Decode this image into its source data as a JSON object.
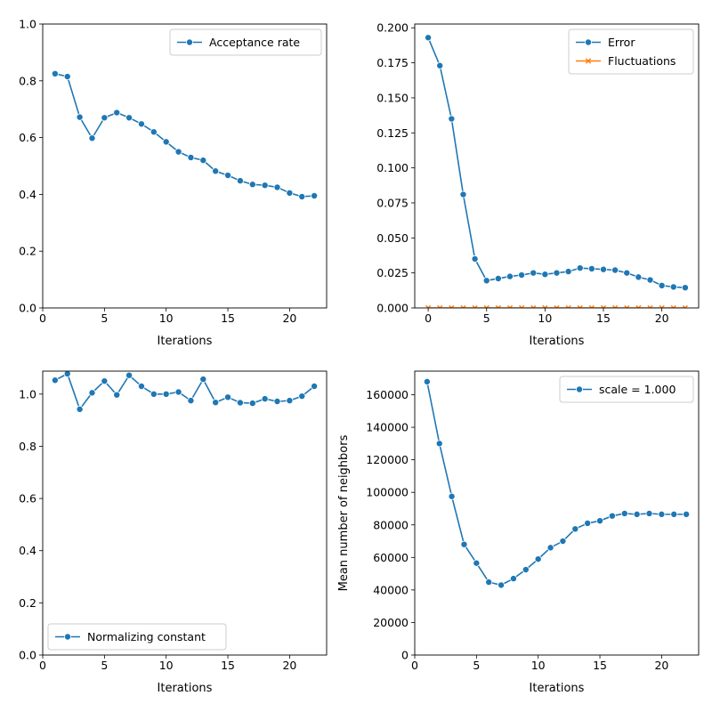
{
  "chart_data": [
    {
      "type": "line",
      "xlabel": "Iterations",
      "ylabel": "",
      "xlim": [
        0,
        23
      ],
      "ylim": [
        0,
        1.0
      ],
      "xticks": [
        0,
        5,
        10,
        15,
        20
      ],
      "xtick_labels": [
        "0",
        "5",
        "10",
        "15",
        "20"
      ],
      "yticks": [
        0,
        0.2,
        0.4,
        0.6,
        0.8,
        1.0
      ],
      "ytick_labels": [
        "0.0",
        "0.2",
        "0.4",
        "0.6",
        "0.8",
        "1.0"
      ],
      "legend_position": "top-right",
      "series": [
        {
          "name": "Acceptance rate",
          "color": "#1f77b4",
          "marker": "circle",
          "x": [
            1,
            2,
            3,
            4,
            5,
            6,
            7,
            8,
            9,
            10,
            11,
            12,
            13,
            14,
            15,
            16,
            17,
            18,
            19,
            20,
            21,
            22
          ],
          "values": [
            0.825,
            0.815,
            0.672,
            0.598,
            0.67,
            0.688,
            0.67,
            0.648,
            0.62,
            0.585,
            0.55,
            0.53,
            0.52,
            0.482,
            0.467,
            0.448,
            0.435,
            0.432,
            0.425,
            0.405,
            0.392,
            0.395
          ]
        }
      ]
    },
    {
      "type": "line",
      "xlabel": "Iterations",
      "ylabel": "",
      "xlim": [
        -1.15,
        23.15
      ],
      "ylim": [
        0,
        0.2027
      ],
      "xticks": [
        0,
        5,
        10,
        15,
        20
      ],
      "xtick_labels": [
        "0",
        "5",
        "10",
        "15",
        "20"
      ],
      "yticks": [
        0,
        0.025,
        0.05,
        0.075,
        0.1,
        0.125,
        0.15,
        0.175,
        0.2
      ],
      "ytick_labels": [
        "0.000",
        "0.025",
        "0.050",
        "0.075",
        "0.100",
        "0.125",
        "0.150",
        "0.175",
        "0.200"
      ],
      "legend_position": "top-right",
      "series": [
        {
          "name": "Error",
          "color": "#1f77b4",
          "marker": "circle",
          "x": [
            0,
            1,
            2,
            3,
            4,
            5,
            6,
            7,
            8,
            9,
            10,
            11,
            12,
            13,
            14,
            15,
            16,
            17,
            18,
            19,
            20,
            21,
            22
          ],
          "values": [
            0.193,
            0.173,
            0.135,
            0.081,
            0.035,
            0.0195,
            0.021,
            0.0225,
            0.0235,
            0.025,
            0.024,
            0.025,
            0.026,
            0.0285,
            0.028,
            0.0275,
            0.027,
            0.025,
            0.022,
            0.02,
            0.016,
            0.015,
            0.0145
          ]
        },
        {
          "name": "Fluctuations",
          "color": "#ff7f0e",
          "marker": "x",
          "x": [
            0,
            1,
            2,
            3,
            4,
            5,
            6,
            7,
            8,
            9,
            10,
            11,
            12,
            13,
            14,
            15,
            16,
            17,
            18,
            19,
            20,
            21,
            22
          ],
          "values": [
            0,
            0,
            0,
            0,
            0,
            0,
            0,
            0,
            0,
            0,
            0,
            0,
            0,
            0,
            0,
            0,
            0,
            0,
            0,
            0,
            0,
            0,
            0
          ]
        }
      ]
    },
    {
      "type": "line",
      "xlabel": "Iterations",
      "ylabel": "",
      "xlim": [
        0,
        23
      ],
      "ylim": [
        0,
        1.088
      ],
      "xticks": [
        0,
        5,
        10,
        15,
        20
      ],
      "xtick_labels": [
        "0",
        "5",
        "10",
        "15",
        "20"
      ],
      "yticks": [
        0,
        0.2,
        0.4,
        0.6,
        0.8,
        1.0
      ],
      "ytick_labels": [
        "0.0",
        "0.2",
        "0.4",
        "0.6",
        "0.8",
        "1.0"
      ],
      "legend_position": "bottom-left",
      "series": [
        {
          "name": "Normalizing constant",
          "color": "#1f77b4",
          "marker": "circle",
          "x": [
            1,
            2,
            3,
            4,
            5,
            6,
            7,
            8,
            9,
            10,
            11,
            12,
            13,
            14,
            15,
            16,
            17,
            18,
            19,
            20,
            21,
            22
          ],
          "values": [
            1.053,
            1.078,
            0.942,
            1.005,
            1.05,
            0.997,
            1.072,
            1.03,
            1.0,
            1.0,
            1.008,
            0.975,
            1.057,
            0.968,
            0.988,
            0.967,
            0.965,
            0.982,
            0.972,
            0.975,
            0.992,
            1.03
          ]
        }
      ]
    },
    {
      "type": "line",
      "xlabel": "Iterations",
      "ylabel": "Mean number of neighbors",
      "xlim": [
        0,
        23
      ],
      "ylim": [
        0,
        174500
      ],
      "xticks": [
        0,
        5,
        10,
        15,
        20
      ],
      "xtick_labels": [
        "0",
        "5",
        "10",
        "15",
        "20"
      ],
      "yticks": [
        0,
        20000,
        40000,
        60000,
        80000,
        100000,
        120000,
        140000,
        160000
      ],
      "ytick_labels": [
        "0",
        "20000",
        "40000",
        "60000",
        "80000",
        "100000",
        "120000",
        "140000",
        "160000"
      ],
      "legend_position": "top-right",
      "series": [
        {
          "name": "scale = 1.000",
          "color": "#1f77b4",
          "marker": "circle",
          "x": [
            1,
            2,
            3,
            4,
            5,
            6,
            7,
            8,
            9,
            10,
            11,
            12,
            13,
            14,
            15,
            16,
            17,
            18,
            19,
            20,
            21,
            22
          ],
          "values": [
            168000,
            130000,
            97500,
            68000,
            56500,
            44800,
            43000,
            47000,
            52500,
            59000,
            66000,
            70000,
            77500,
            81000,
            82500,
            85500,
            87000,
            86500,
            87000,
            86500,
            86500,
            86500
          ]
        }
      ]
    }
  ]
}
